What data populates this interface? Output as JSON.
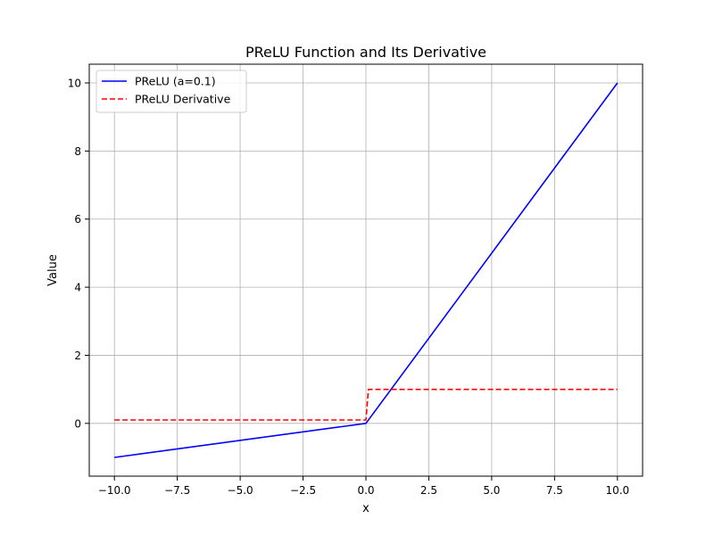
{
  "chart_data": {
    "type": "line",
    "title": "PReLU Function and Its Derivative",
    "xlabel": "x",
    "ylabel": "Value",
    "xlim": [
      -11.0,
      11.0
    ],
    "ylim": [
      -1.55,
      10.55
    ],
    "x_ticks": [
      -10.0,
      -7.5,
      -5.0,
      -2.5,
      0.0,
      2.5,
      5.0,
      7.5,
      10.0
    ],
    "x_tick_labels": [
      "−10.0",
      "−7.5",
      "−5.0",
      "−2.5",
      "0.0",
      "2.5",
      "5.0",
      "7.5",
      "10.0"
    ],
    "y_ticks": [
      0,
      2,
      4,
      6,
      8,
      10
    ],
    "y_tick_labels": [
      "0",
      "2",
      "4",
      "6",
      "8",
      "10"
    ],
    "grid": true,
    "legend_position": "top-left",
    "series": [
      {
        "name": "PReLU (a=0.1)",
        "color": "#0000ff",
        "style": "solid",
        "x": [
          -10,
          0,
          10
        ],
        "y": [
          -1,
          0,
          10
        ]
      },
      {
        "name": "PReLU Derivative",
        "color": "#ff0000",
        "style": "dashed",
        "x": [
          -10,
          0,
          0.1,
          10
        ],
        "y": [
          0.1,
          0.1,
          1,
          1
        ]
      }
    ]
  }
}
